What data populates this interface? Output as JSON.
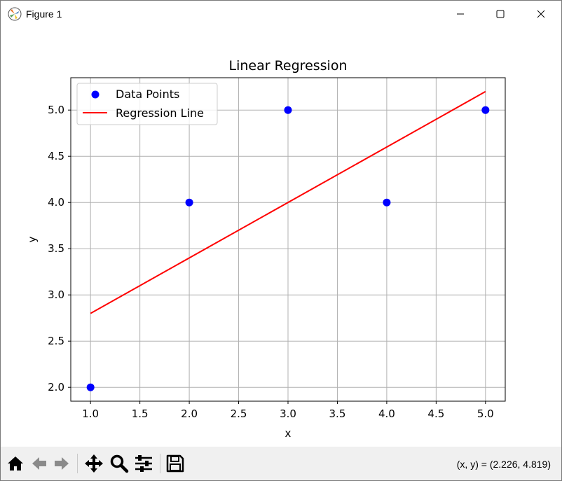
{
  "window": {
    "title": "Figure 1",
    "controls": {
      "minimize": "minimize",
      "maximize": "maximize",
      "close": "close"
    }
  },
  "toolbar": {
    "buttons": [
      {
        "icon": "home-icon",
        "label": "Home"
      },
      {
        "icon": "back-icon",
        "label": "Back"
      },
      {
        "icon": "forward-icon",
        "label": "Forward"
      },
      {
        "icon": "pan-icon",
        "label": "Pan"
      },
      {
        "icon": "zoom-icon",
        "label": "Zoom"
      },
      {
        "icon": "configure-subplots-icon",
        "label": "Configure subplots"
      },
      {
        "icon": "save-icon",
        "label": "Save"
      }
    ],
    "coords_text": "(x, y) = (2.226, 4.819)"
  },
  "chart_data": {
    "type": "scatter",
    "title": "Linear Regression",
    "xlabel": "x",
    "ylabel": "y",
    "xlim": [
      0.8,
      5.2
    ],
    "ylim": [
      1.85,
      5.35
    ],
    "xticks": [
      "1.0",
      "1.5",
      "2.0",
      "2.5",
      "3.0",
      "3.5",
      "4.0",
      "4.5",
      "5.0"
    ],
    "yticks": [
      "2.0",
      "2.5",
      "3.0",
      "3.5",
      "4.0",
      "4.5",
      "5.0"
    ],
    "grid": true,
    "legend_position": "upper-left",
    "series": [
      {
        "name": "Data Points",
        "kind": "scatter",
        "color": "#0000ff",
        "x": [
          1,
          2,
          3,
          4,
          5
        ],
        "y": [
          2,
          4,
          5,
          4,
          5
        ]
      },
      {
        "name": "Regression Line",
        "kind": "line",
        "color": "#ff0000",
        "x": [
          1,
          5
        ],
        "y": [
          2.8,
          5.2
        ]
      }
    ]
  }
}
